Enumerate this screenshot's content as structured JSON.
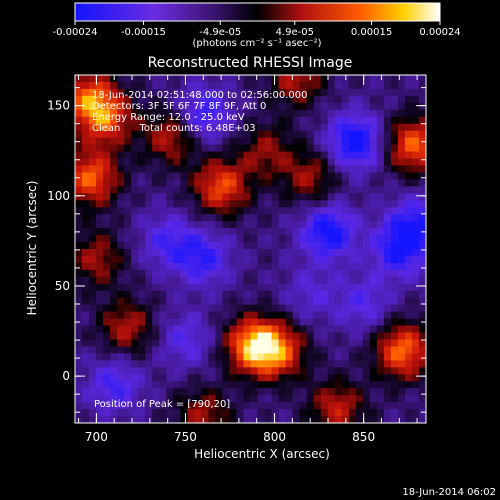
{
  "colorbar": {
    "colormap": "blue-purple-black-red-yellow-white",
    "range": [
      -0.00024,
      0.00024
    ],
    "tick_labels": [
      "-0.00024",
      "-0.00015",
      "-4.9e-05",
      "4.9e-05",
      "0.00015",
      "0.00024"
    ],
    "tick_values": [
      -0.00024,
      -0.00015,
      -4.9e-05,
      4.9e-05,
      0.00015,
      0.00024
    ],
    "units": "(photons cm⁻² s⁻¹ asec⁻²)"
  },
  "header": {
    "title": "Reconstructed RHESSI Image",
    "info_lines": [
      "18-Jun-2014 02:51:48.000 to 02:56:00.000",
      "Detectors: 3F 5F 6F 7F 8F 9F, Att 0",
      "Energy Range: 12.0 - 25.0 keV",
      "Clean      Total counts: 6.48E+03"
    ],
    "peak_label": "Position of Peak = [790,20]"
  },
  "footer": {
    "timestamp": "18-Jun-2014 06:02"
  },
  "chart_data": {
    "type": "heatmap",
    "title": "Reconstructed RHESSI Image",
    "xlabel": "Heliocentric X (arcsec)",
    "ylabel": "Heliocentric Y (arcsec)",
    "xlim": [
      688,
      885
    ],
    "ylim": [
      -26,
      167
    ],
    "x_ticks": [
      700,
      750,
      800,
      850
    ],
    "y_ticks": [
      0,
      50,
      100,
      150
    ],
    "value_range": [
      -0.00024,
      0.00024
    ],
    "peak_position": [
      790,
      20
    ],
    "grid": false,
    "bright_sources": [
      {
        "x": 695,
        "y": 155,
        "level": 0.7
      },
      {
        "x": 697,
        "y": 110,
        "level": 0.85
      },
      {
        "x": 705,
        "y": 143,
        "level": 0.75
      },
      {
        "x": 742,
        "y": 133,
        "level": 0.6
      },
      {
        "x": 770,
        "y": 105,
        "level": 0.8
      },
      {
        "x": 788,
        "y": 17,
        "level": 1.0
      },
      {
        "x": 802,
        "y": 14,
        "level": 0.75
      },
      {
        "x": 878,
        "y": 128,
        "level": 0.85
      },
      {
        "x": 872,
        "y": 14,
        "level": 0.9
      },
      {
        "x": 717,
        "y": 27,
        "level": 0.55
      },
      {
        "x": 820,
        "y": 110,
        "level": 0.5
      },
      {
        "x": 812,
        "y": 165,
        "level": 0.55
      },
      {
        "x": 835,
        "y": -18,
        "level": 0.6
      },
      {
        "x": 760,
        "y": -22,
        "level": 0.5
      },
      {
        "x": 700,
        "y": 65,
        "level": 0.5
      },
      {
        "x": 795,
        "y": 125,
        "level": 0.45
      }
    ],
    "dark_sources": [
      {
        "x": 845,
        "y": 130,
        "level": -0.8
      },
      {
        "x": 830,
        "y": 80,
        "level": -0.75
      },
      {
        "x": 870,
        "y": 70,
        "level": -0.65
      },
      {
        "x": 760,
        "y": 145,
        "level": -0.6
      },
      {
        "x": 760,
        "y": 65,
        "level": -0.55
      },
      {
        "x": 740,
        "y": 75,
        "level": -0.45
      },
      {
        "x": 710,
        "y": -5,
        "level": -0.5
      },
      {
        "x": 750,
        "y": 20,
        "level": -0.4
      },
      {
        "x": 850,
        "y": 40,
        "level": -0.4
      },
      {
        "x": 880,
        "y": 85,
        "level": -0.55
      },
      {
        "x": 820,
        "y": 45,
        "level": -0.3
      }
    ]
  }
}
